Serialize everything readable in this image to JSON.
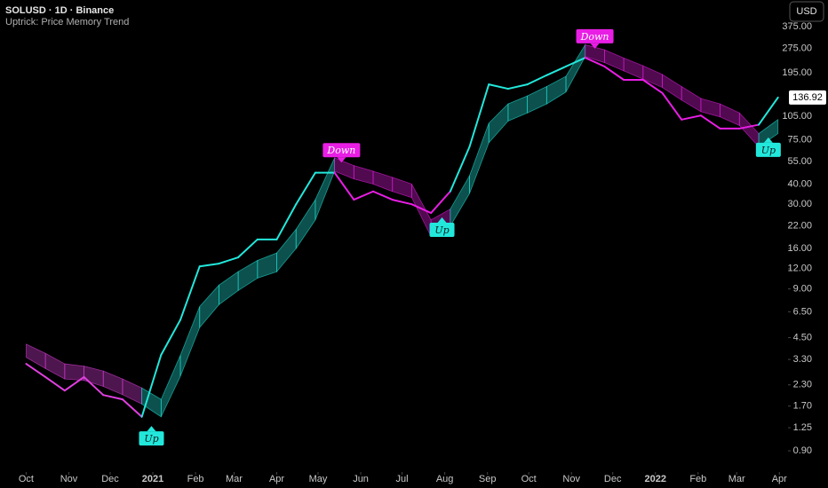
{
  "chart_data": {
    "type": "line",
    "title": "SOLUSD · 1D · Binance",
    "subtitle": "Uptrick: Price Memory Trend",
    "currency": "USD",
    "log_scale": true,
    "grid": false,
    "x": [
      0,
      14,
      28,
      42,
      56,
      70,
      84,
      98,
      112,
      126,
      140,
      154,
      168,
      182,
      196,
      210,
      224,
      238,
      252,
      266,
      280,
      294,
      308,
      322,
      336,
      350,
      364,
      378,
      392,
      406,
      420,
      434,
      448,
      462,
      476,
      490,
      504,
      518,
      532,
      546
    ],
    "values": [
      3.1,
      2.57,
      2.12,
      2.57,
      1.99,
      1.87,
      1.46,
      3.52,
      5.8,
      12.4,
      12.9,
      14.1,
      18.2,
      18.2,
      30,
      47,
      47,
      32,
      36,
      32,
      30,
      26.5,
      36,
      68,
      165,
      155,
      165,
      188,
      213,
      241,
      213,
      176,
      176,
      146,
      100,
      106,
      88,
      88,
      93,
      136.92
    ],
    "band_upper": [
      4.1,
      3.6,
      3.1,
      3.0,
      2.8,
      2.5,
      2.2,
      1.87,
      3.5,
      7.0,
      9.5,
      11.5,
      13.5,
      15,
      21,
      32,
      58,
      52,
      48,
      44,
      40,
      24,
      28,
      45,
      95,
      125,
      140,
      160,
      185,
      290,
      270,
      240,
      215,
      190,
      160,
      135,
      125,
      110,
      82,
      100
    ],
    "band_lower": [
      3.4,
      2.9,
      2.5,
      2.45,
      2.25,
      2.0,
      1.75,
      1.46,
      2.6,
      5.2,
      7.2,
      8.8,
      10.5,
      11.5,
      16,
      24,
      48,
      43,
      40,
      36,
      33,
      19,
      22,
      35,
      72,
      98,
      110,
      125,
      148,
      245,
      225,
      200,
      178,
      158,
      132,
      112,
      104,
      92,
      68,
      82
    ],
    "initial_color": "#e040e0",
    "signals": [
      {
        "label": "Up",
        "x": 91,
        "y": 1.28,
        "color": "#22e8dc",
        "text_color": "#0b1a1a",
        "placement": "below"
      },
      {
        "label": "Down",
        "x": 229,
        "y": 54.3,
        "color": "#e91ee5",
        "text_color": "#ffffff",
        "placement": "above"
      },
      {
        "label": "Up",
        "x": 302,
        "y": 24.9,
        "color": "#22e8dc",
        "text_color": "#0b1a1a",
        "placement": "below"
      },
      {
        "label": "Down",
        "x": 413,
        "y": 274,
        "color": "#e91ee5",
        "text_color": "#ffffff",
        "placement": "above"
      },
      {
        "label": "Up",
        "x": 539,
        "y": 77.6,
        "color": "#22e8dc",
        "text_color": "#0b1a1a",
        "placement": "below"
      }
    ],
    "last_price": 136.92,
    "xlim": [
      -19,
      552
    ],
    "ylim": [
      0.7,
      548
    ],
    "xticks": [
      {
        "value": 0,
        "label": "Oct"
      },
      {
        "value": 31,
        "label": "Nov"
      },
      {
        "value": 61,
        "label": "Dec"
      },
      {
        "value": 92,
        "label": "2021"
      },
      {
        "value": 123,
        "label": "Feb"
      },
      {
        "value": 151,
        "label": "Mar"
      },
      {
        "value": 182,
        "label": "Apr"
      },
      {
        "value": 212,
        "label": "May"
      },
      {
        "value": 243,
        "label": "Jun"
      },
      {
        "value": 273,
        "label": "Jul"
      },
      {
        "value": 304,
        "label": "Aug"
      },
      {
        "value": 335,
        "label": "Sep"
      },
      {
        "value": 365,
        "label": "Oct"
      },
      {
        "value": 396,
        "label": "Nov"
      },
      {
        "value": 426,
        "label": "Dec"
      },
      {
        "value": 457,
        "label": "2022"
      },
      {
        "value": 488,
        "label": "Feb"
      },
      {
        "value": 516,
        "label": "Mar"
      },
      {
        "value": 547,
        "label": "Apr"
      }
    ],
    "yticks": [
      {
        "value": 375,
        "label": "375.00"
      },
      {
        "value": 275,
        "label": "275.00"
      },
      {
        "value": 195,
        "label": "195.00"
      },
      {
        "value": 105,
        "label": "105.00"
      },
      {
        "value": 75,
        "label": "75.00"
      },
      {
        "value": 55,
        "label": "55.00"
      },
      {
        "value": 40,
        "label": "40.00"
      },
      {
        "value": 30,
        "label": "30.00"
      },
      {
        "value": 22,
        "label": "22.00"
      },
      {
        "value": 16,
        "label": "16.00"
      },
      {
        "value": 12,
        "label": "12.00"
      },
      {
        "value": 9,
        "label": "9.00"
      },
      {
        "value": 6.5,
        "label": "6.50"
      },
      {
        "value": 4.5,
        "label": "4.50"
      },
      {
        "value": 3.3,
        "label": "3.30"
      },
      {
        "value": 2.3,
        "label": "2.30"
      },
      {
        "value": 1.7,
        "label": "1.70"
      },
      {
        "value": 1.25,
        "label": "1.25"
      },
      {
        "value": 0.9,
        "label": "0.90"
      }
    ]
  }
}
